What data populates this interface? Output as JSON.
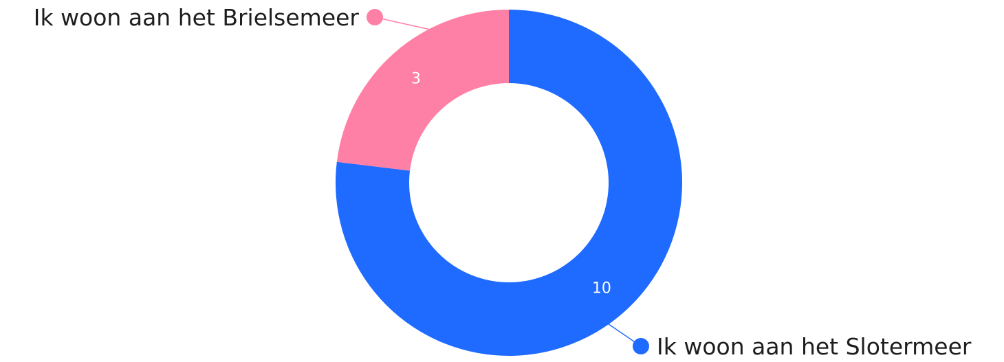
{
  "chart_data": {
    "type": "pie",
    "donut": true,
    "categories": [
      "Ik woon aan het Slotermeer",
      "Ik woon aan het Brielsemeer"
    ],
    "values": [
      10,
      3
    ],
    "colors": [
      "#1f6bff",
      "#ff80a6"
    ],
    "value_labels": [
      "10",
      "3"
    ],
    "legend": "labels outside slices"
  }
}
